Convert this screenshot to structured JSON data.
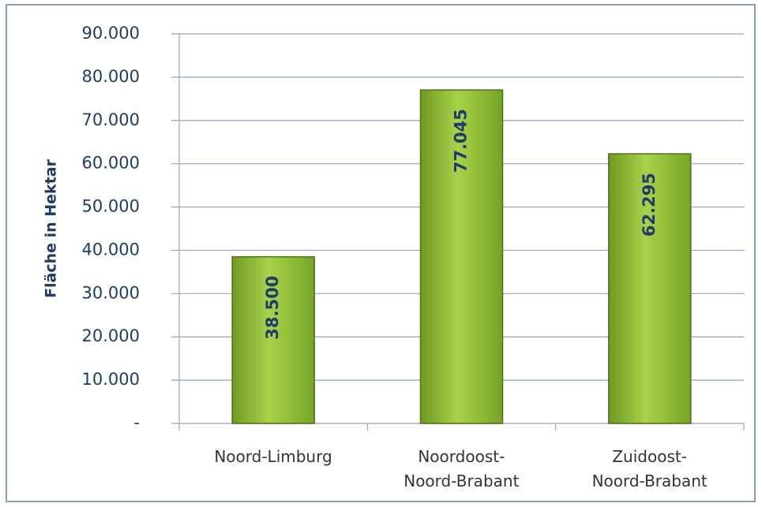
{
  "chart_data": {
    "type": "bar",
    "y_label": "Fläche in Hektar",
    "categories": [
      "Noord-Limburg",
      "Noordoost-\nNoord-Brabant",
      "Zuidoost-\nNoord-Brabant"
    ],
    "values": [
      38500,
      77045,
      62295
    ],
    "value_labels": [
      "38.500",
      "77.045",
      "62.295"
    ],
    "color": "#8fbf32",
    "ylim": [
      0,
      90000
    ],
    "yticks": [
      {
        "value": 0,
        "label": "-"
      },
      {
        "value": 10000,
        "label": "10.000"
      },
      {
        "value": 20000,
        "label": "20.000"
      },
      {
        "value": 30000,
        "label": "30.000"
      },
      {
        "value": 40000,
        "label": "40.000"
      },
      {
        "value": 50000,
        "label": "50.000"
      },
      {
        "value": 60000,
        "label": "60.000"
      },
      {
        "value": 70000,
        "label": "70.000"
      },
      {
        "value": 80000,
        "label": "80.000"
      },
      {
        "value": 90000,
        "label": "90.000"
      }
    ],
    "grid": true
  }
}
